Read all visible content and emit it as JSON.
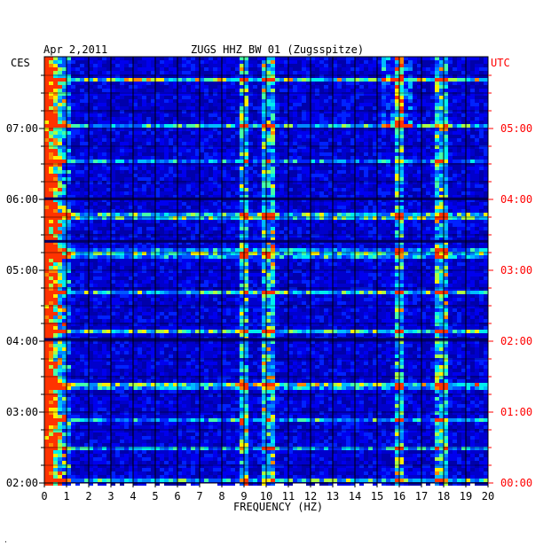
{
  "header": {
    "date": "Apr 2,2011",
    "station": "ZUGS HHZ BW 01 (Zugsspitze)",
    "left_tz": "CES",
    "right_tz": "UTC"
  },
  "footer": {
    "mark": "·"
  },
  "chart_data": {
    "type": "heatmap",
    "title": "ZUGS HHZ BW 01 (Zugsspitze)",
    "xlabel": "FREQUENCY (HZ)",
    "xlim": [
      0,
      20
    ],
    "x_ticks": [
      "0",
      "1",
      "2",
      "3",
      "4",
      "5",
      "6",
      "7",
      "8",
      "9",
      "10",
      "11",
      "12",
      "13",
      "14",
      "15",
      "16",
      "17",
      "18",
      "19",
      "20"
    ],
    "y_ticks_left": [
      "07:00",
      "06:00",
      "05:00",
      "04:00",
      "03:00",
      "02:00"
    ],
    "y_ticks_right": [
      "05:00",
      "04:00",
      "03:00",
      "02:00",
      "01:00",
      "00:00"
    ],
    "y_range_utc": [
      "00:00",
      "05:50"
    ],
    "colors": {
      "background": "#0000cc",
      "low": "#0000ff",
      "mid": "#00aaff",
      "high": "#ffff00",
      "peak": "#ff3300",
      "grid": "#000000",
      "utc_text": "#ff0000"
    },
    "features": [
      {
        "freq_hz": 0.3,
        "description": "strong low-frequency energy"
      },
      {
        "freq_hz": 9.0,
        "description": "spectral line"
      },
      {
        "freq_hz": 10.0,
        "description": "spectral line"
      },
      {
        "freq_hz": 16.0,
        "description": "spectral line"
      },
      {
        "freq_hz": 17.8,
        "description": "spectral line"
      }
    ]
  }
}
